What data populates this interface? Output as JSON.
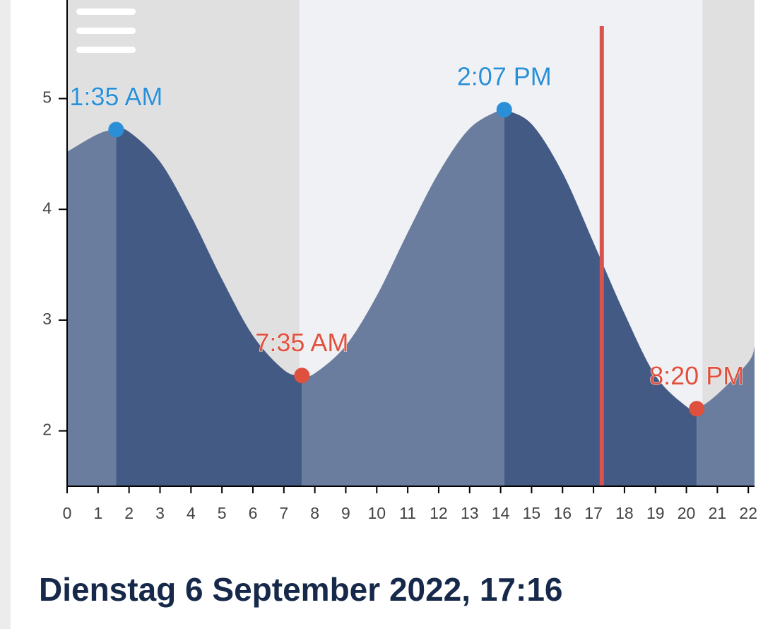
{
  "chart_data": {
    "type": "tide",
    "x": [
      0,
      1,
      1.583,
      2,
      3,
      4,
      5,
      6,
      7,
      7.583,
      8,
      9,
      10,
      11,
      12,
      13,
      14,
      14.117,
      15,
      16,
      17,
      18,
      19,
      20,
      20.333,
      21,
      22,
      22.2
    ],
    "values": [
      4.52,
      4.68,
      4.72,
      4.7,
      4.43,
      3.94,
      3.37,
      2.86,
      2.55,
      2.5,
      2.52,
      2.77,
      3.22,
      3.79,
      4.33,
      4.73,
      4.9,
      4.9,
      4.77,
      4.33,
      3.7,
      3.06,
      2.5,
      2.22,
      2.2,
      2.33,
      2.62,
      2.76
    ],
    "rising_color": "#6a7d9e",
    "falling_color": "#435a84",
    "extremes": [
      {
        "x": 1.583,
        "value": 4.72,
        "label": "1:35 AM",
        "color": "#2a8fd6"
      },
      {
        "x": 7.583,
        "value": 2.5,
        "label": "7:35 AM",
        "color": "#e0503f"
      },
      {
        "x": 14.117,
        "value": 4.9,
        "label": "2:07 PM",
        "color": "#2a8fd6"
      },
      {
        "x": 20.333,
        "value": 2.2,
        "label": "8:20 PM",
        "color": "#e0503f"
      }
    ],
    "night": [
      [
        0,
        7.5
      ],
      [
        20.52,
        22.2
      ]
    ],
    "now": 17.267,
    "now_color": "#d9534f",
    "xlim": [
      0,
      22.2
    ],
    "ylim": [
      1.5,
      5.89
    ],
    "xticks": [
      0,
      1,
      2,
      3,
      4,
      5,
      6,
      7,
      8,
      9,
      10,
      11,
      12,
      13,
      14,
      15,
      16,
      17,
      18,
      19,
      20,
      21,
      22
    ],
    "yticks": [
      2,
      3,
      4,
      5
    ]
  },
  "date_line": "Dienstag 6 September 2022, 17:16"
}
